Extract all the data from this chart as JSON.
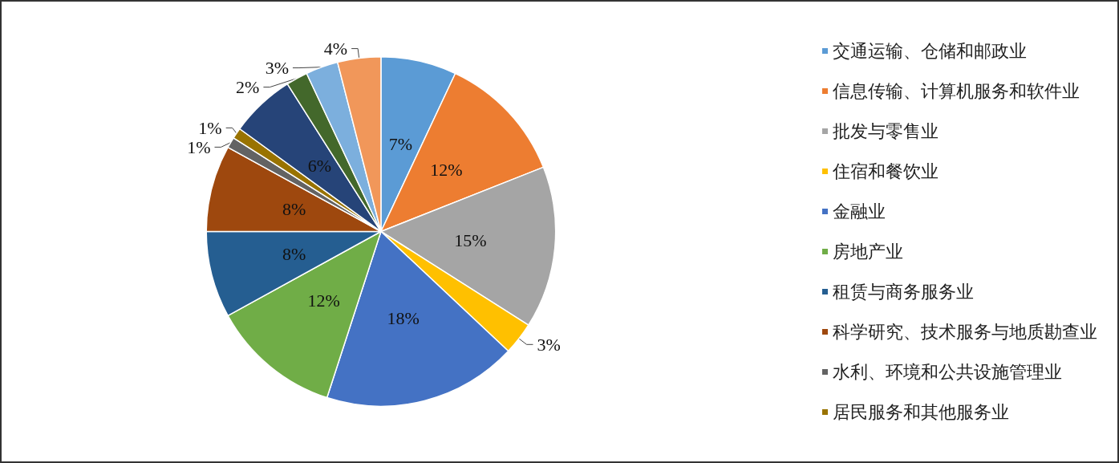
{
  "chart_data": {
    "type": "pie",
    "categories": [
      "交通运输、仓储和邮政业",
      "信息传输、计算机服务和软件业",
      "批发与零售业",
      "住宿和餐饮业",
      "金融业",
      "房地产业",
      "租赁与商务服务业",
      "科学研究、技术服务与地质勘查业",
      "水利、环境和公共设施管理业",
      "居民服务和其他服务业",
      null,
      null,
      null,
      null
    ],
    "values": [
      7,
      12,
      15,
      3,
      18,
      12,
      8,
      8,
      1,
      1,
      6,
      2,
      3,
      4
    ],
    "colors": [
      "#5b9bd5",
      "#ed7d31",
      "#a5a5a5",
      "#ffc000",
      "#4472c4",
      "#70ad47",
      "#255e91",
      "#9e480e",
      "#636363",
      "#997300",
      "#264478",
      "#43682b",
      "#7cafdd",
      "#f1975a"
    ],
    "value_labels": [
      "7%",
      "12%",
      "15%",
      "3%",
      "18%",
      "12%",
      "8%",
      "8%",
      "1%",
      "1%",
      "6%",
      "2%",
      "3%",
      "4%"
    ],
    "legend": "right"
  }
}
